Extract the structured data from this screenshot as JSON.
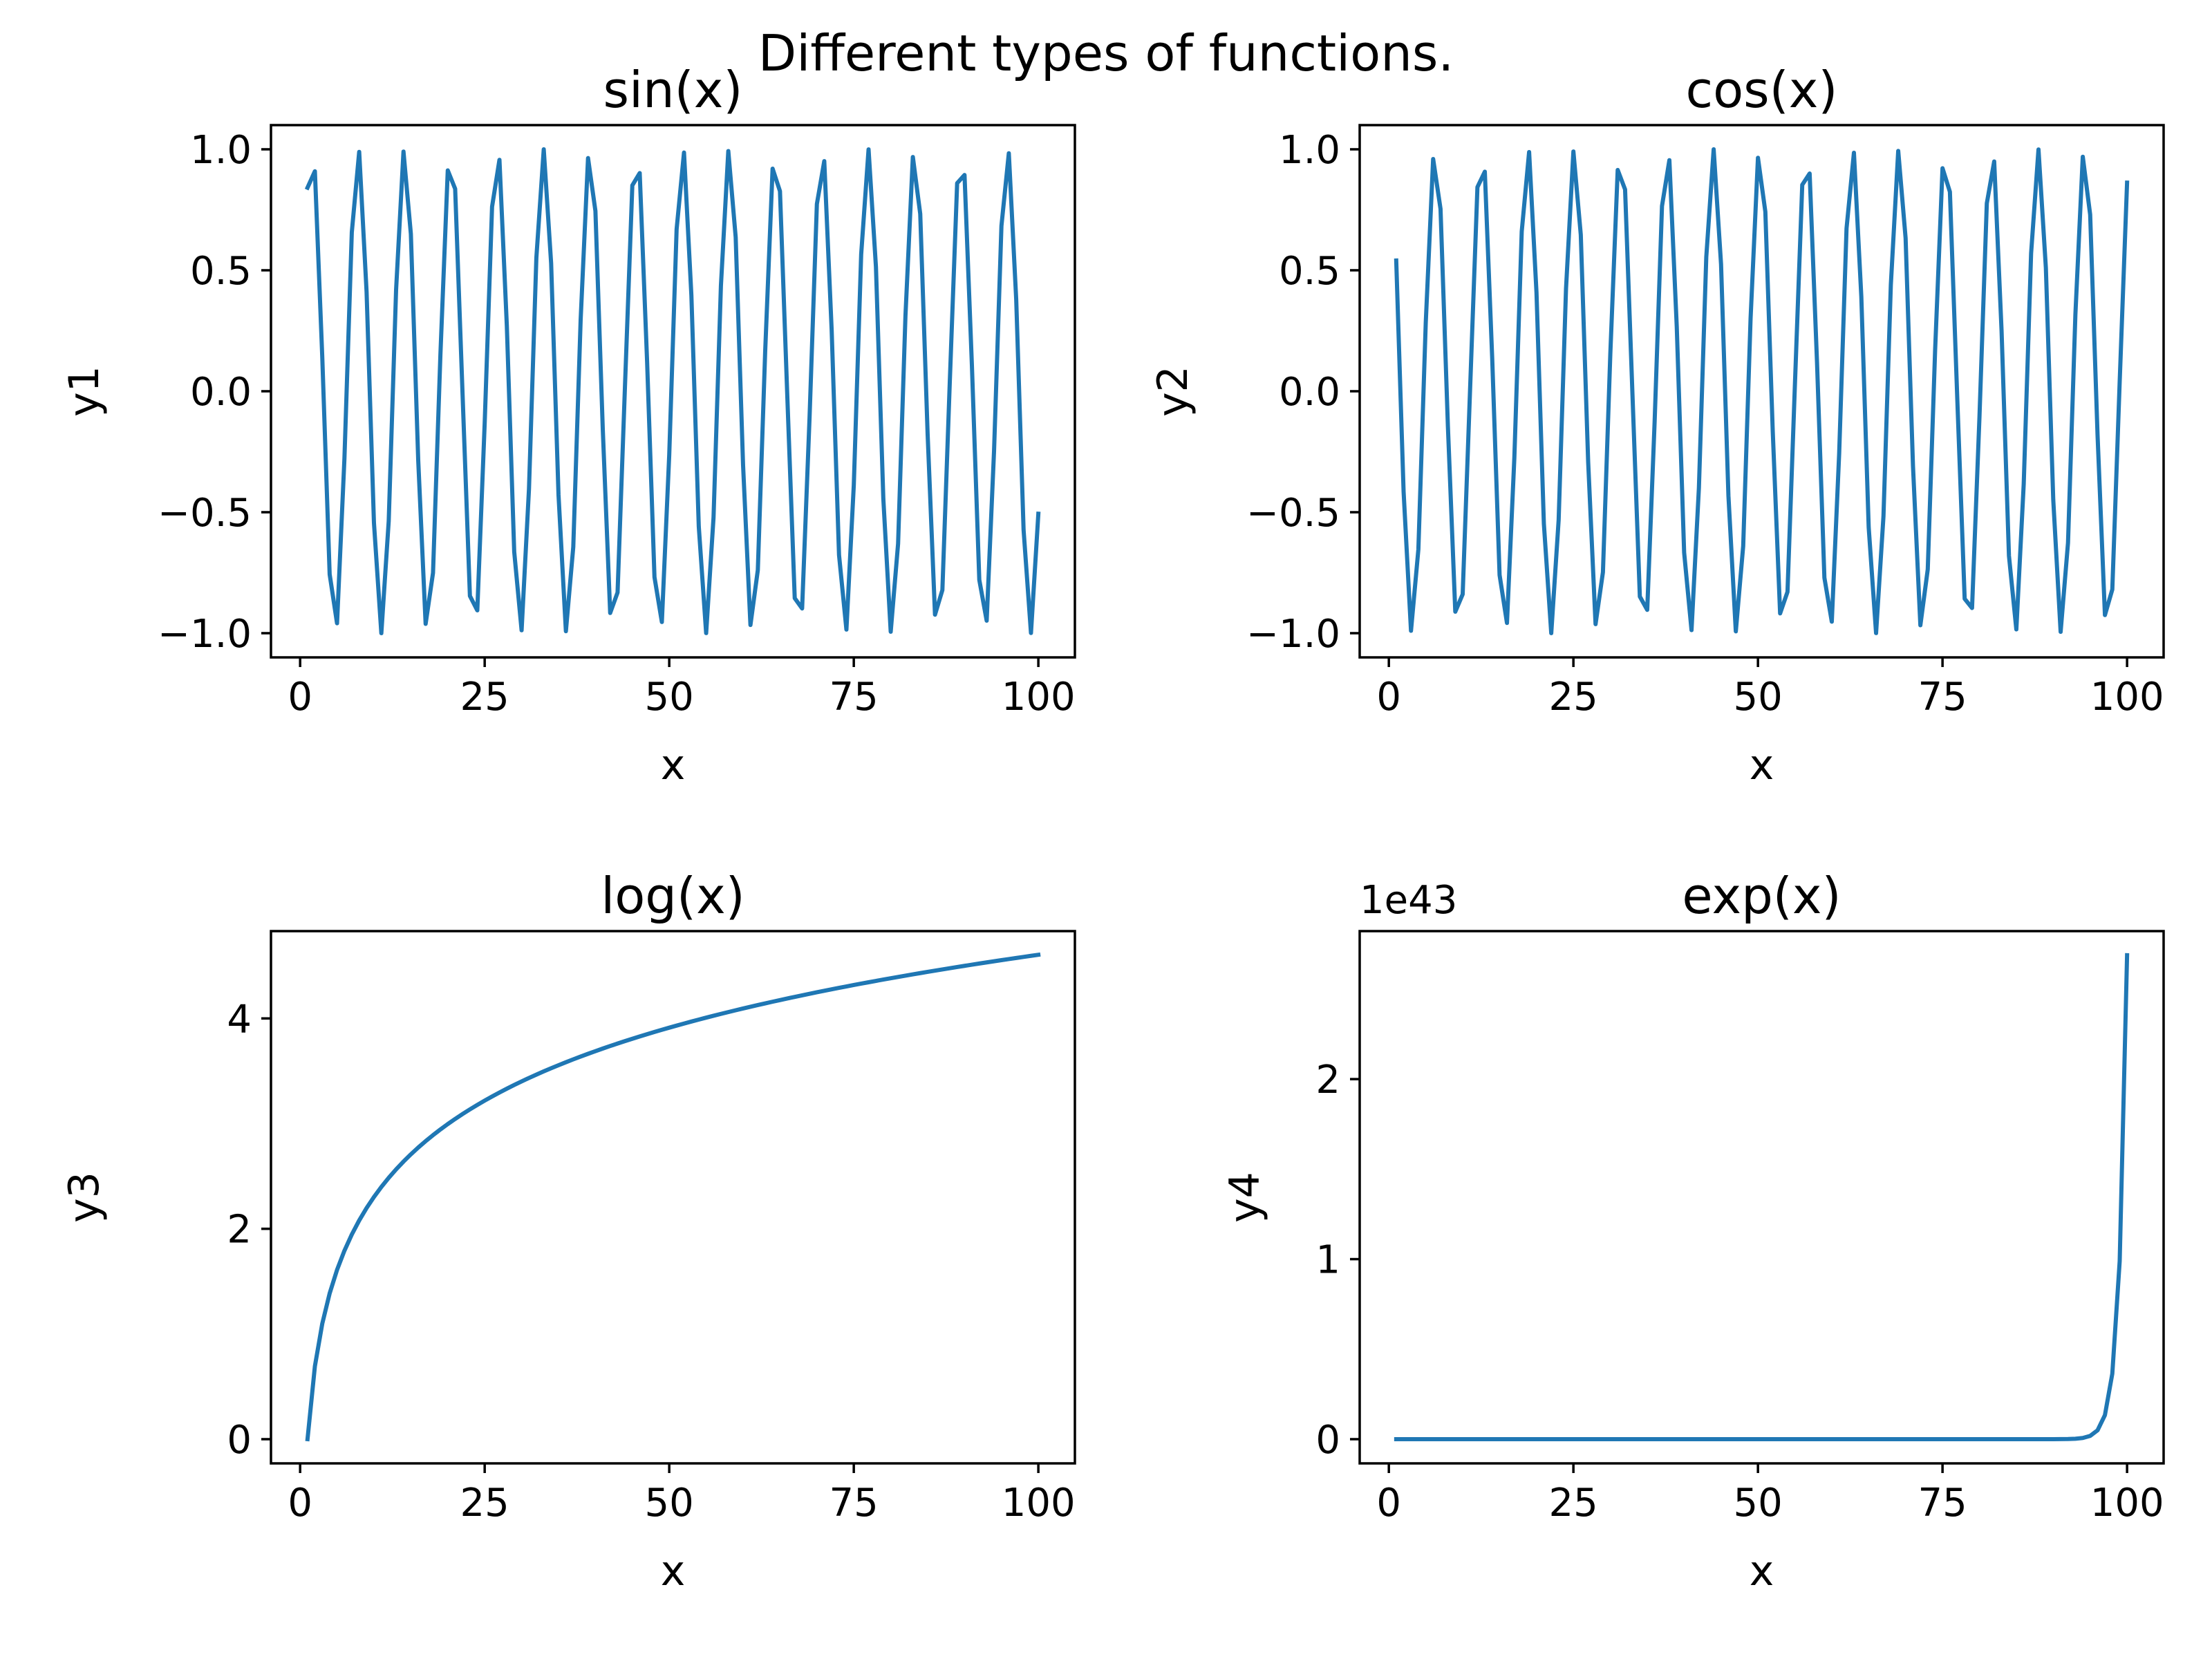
{
  "figure": {
    "suptitle": "Different types of functions.",
    "line_color": "#1f77b4"
  },
  "chart_data": [
    {
      "id": "sin",
      "type": "line",
      "title": "sin(x)",
      "xlabel": "x",
      "ylabel": "y1",
      "function": "sin",
      "x": {
        "start": 1,
        "stop": 100,
        "count": 100
      },
      "xlim": [
        -3.95,
        104.95
      ],
      "ylim": [
        -1.1,
        1.1
      ],
      "xticks": [
        0,
        25,
        50,
        75,
        100
      ],
      "xtick_labels": [
        "0",
        "25",
        "50",
        "75",
        "100"
      ],
      "yticks": [
        -1.0,
        -0.5,
        0.0,
        0.5,
        1.0
      ],
      "ytick_labels": [
        "−1.0",
        "−0.5",
        "0.0",
        "0.5",
        "1.0"
      ],
      "offset_label": "",
      "grid": false,
      "legend": false
    },
    {
      "id": "cos",
      "type": "line",
      "title": "cos(x)",
      "xlabel": "x",
      "ylabel": "y2",
      "function": "cos",
      "x": {
        "start": 1,
        "stop": 100,
        "count": 100
      },
      "xlim": [
        -3.95,
        104.95
      ],
      "ylim": [
        -1.1,
        1.1
      ],
      "xticks": [
        0,
        25,
        50,
        75,
        100
      ],
      "xtick_labels": [
        "0",
        "25",
        "50",
        "75",
        "100"
      ],
      "yticks": [
        -1.0,
        -0.5,
        0.0,
        0.5,
        1.0
      ],
      "ytick_labels": [
        "−1.0",
        "−0.5",
        "0.0",
        "0.5",
        "1.0"
      ],
      "offset_label": "",
      "grid": false,
      "legend": false
    },
    {
      "id": "log",
      "type": "line",
      "title": "log(x)",
      "xlabel": "x",
      "ylabel": "y3",
      "function": "log",
      "x": {
        "start": 1,
        "stop": 100,
        "count": 100
      },
      "xlim": [
        -3.95,
        104.95
      ],
      "ylim": [
        -0.23,
        4.83
      ],
      "xticks": [
        0,
        25,
        50,
        75,
        100
      ],
      "xtick_labels": [
        "0",
        "25",
        "50",
        "75",
        "100"
      ],
      "yticks": [
        0,
        2,
        4
      ],
      "ytick_labels": [
        "0",
        "2",
        "4"
      ],
      "offset_label": "",
      "grid": false,
      "legend": false
    },
    {
      "id": "exp",
      "type": "line",
      "title": "exp(x)",
      "xlabel": "x",
      "ylabel": "y4",
      "function": "exp",
      "x": {
        "start": 1,
        "stop": 100,
        "count": 100
      },
      "xlim": [
        -3.95,
        104.95
      ],
      "ylim": [
        -1.344e+42,
        2.822e+43
      ],
      "xticks": [
        0,
        25,
        50,
        75,
        100
      ],
      "xtick_labels": [
        "0",
        "25",
        "50",
        "75",
        "100"
      ],
      "yticks": [
        0,
        1e+43,
        2e+43
      ],
      "ytick_labels": [
        "0",
        "1",
        "2"
      ],
      "offset_label": "1e43",
      "grid": false,
      "legend": false
    }
  ]
}
